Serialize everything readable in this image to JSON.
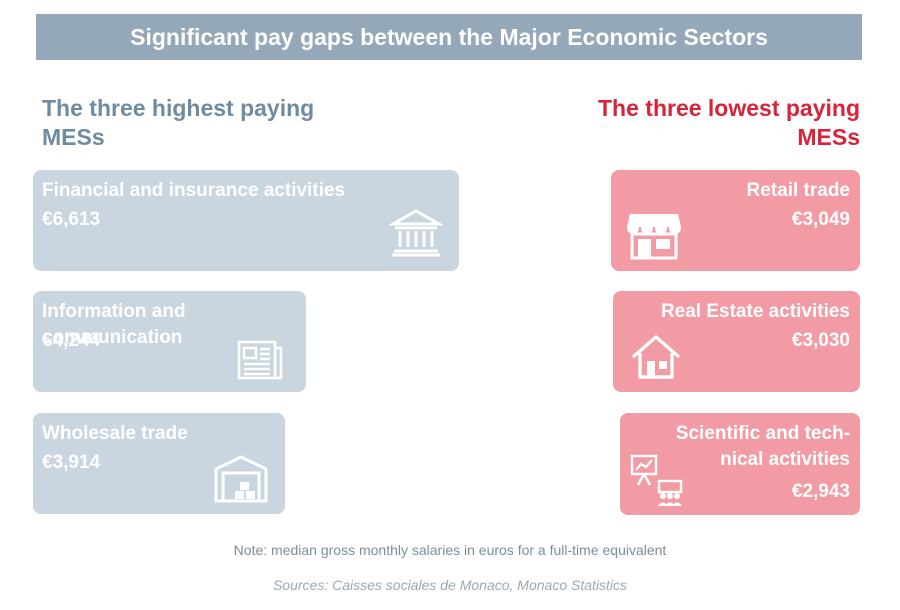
{
  "title": "Significant pay gaps between the Major Economic Sectors",
  "chart_data": {
    "type": "bar",
    "title": "Significant pay gaps between the Major Economic Sectors",
    "groups": [
      {
        "heading": "The three highest paying MESs",
        "color": "#c9d5df",
        "items": [
          {
            "label": "Financial and insurance activities",
            "value": 6613,
            "value_text": "€6,613",
            "icon": "bank-icon"
          },
          {
            "label": "Information and communication",
            "value": 4244,
            "value_text": "€4,244",
            "icon": "newspaper-icon"
          },
          {
            "label": "Wholesale trade",
            "value": 3914,
            "value_text": "€3,914",
            "icon": "warehouse-icon"
          }
        ]
      },
      {
        "heading": "The three lowest paying MESs",
        "color": "#f29ba5",
        "items": [
          {
            "label": "Retail trade",
            "value": 3049,
            "value_text": "€3,049",
            "icon": "storefront-icon"
          },
          {
            "label": "Real Estate activities",
            "value": 3030,
            "value_text": "€3,030",
            "icon": "house-icon"
          },
          {
            "label": "Scientific and technical activities",
            "label_lines": [
              "Scientific and tech-",
              "nical activities"
            ],
            "value": 2943,
            "value_text": "€2,943",
            "icon": "presentation-icon"
          }
        ]
      }
    ]
  },
  "note": "Note: median gross monthly salaries in euros for a full-time equivalent",
  "source": "Sources: Caisses sociales de Monaco, Monaco Statistics"
}
